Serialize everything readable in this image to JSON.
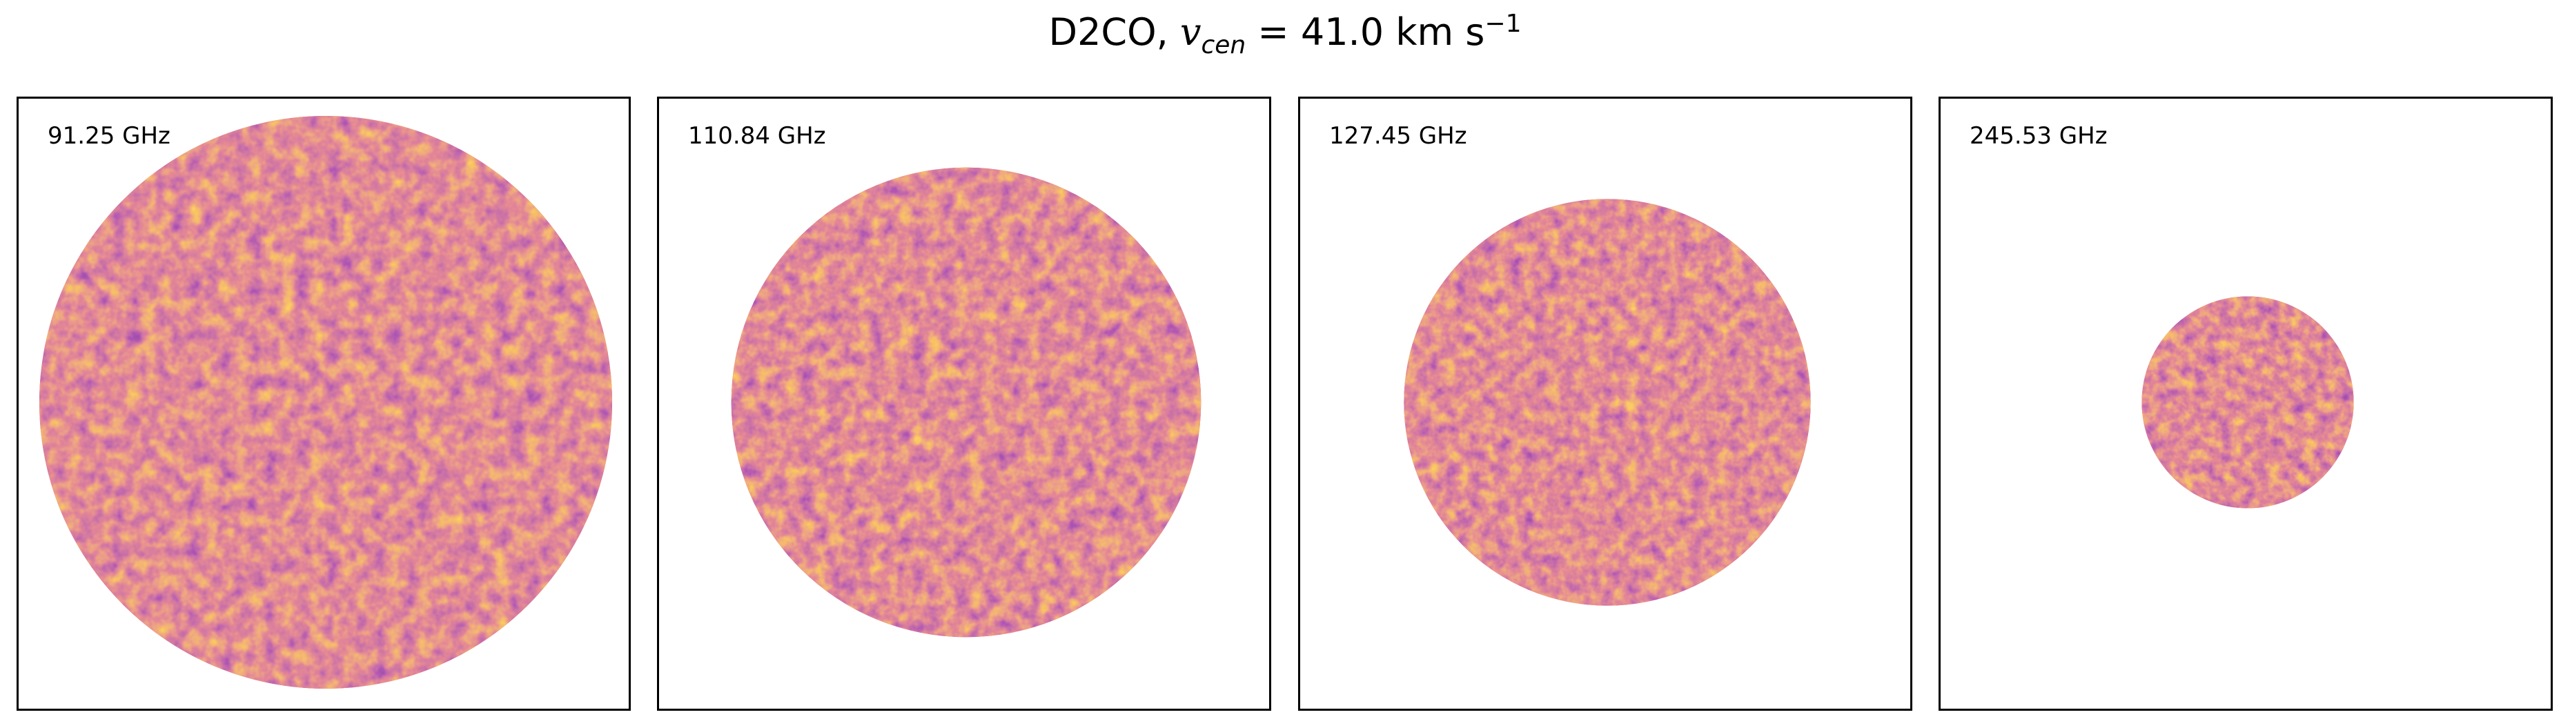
{
  "title": {
    "species": "D2CO,",
    "var": "v",
    "sub": "cen",
    "eq": "=",
    "value": "41.0 km s",
    "exp": "−1"
  },
  "chart_data": {
    "type": "heatmap",
    "title": "D2CO, v_cen = 41.0 km s^-1",
    "colormap": "inferno",
    "axes_visible": false,
    "panels": [
      {
        "label": "91.25 GHz",
        "frequency_ghz": 91.25,
        "relative_disk_size": 1.0
      },
      {
        "label": "110.84 GHz",
        "frequency_ghz": 110.84,
        "relative_disk_size": 0.82
      },
      {
        "label": "127.45 GHz",
        "frequency_ghz": 127.45,
        "relative_disk_size": 0.71
      },
      {
        "label": "245.53 GHz",
        "frequency_ghz": 245.53,
        "relative_disk_size": 0.37
      }
    ]
  },
  "colors": {
    "dark": "#3a0f5e",
    "mid": "#b3376f",
    "bright": "#f0a028",
    "base": "#c24a3c"
  }
}
